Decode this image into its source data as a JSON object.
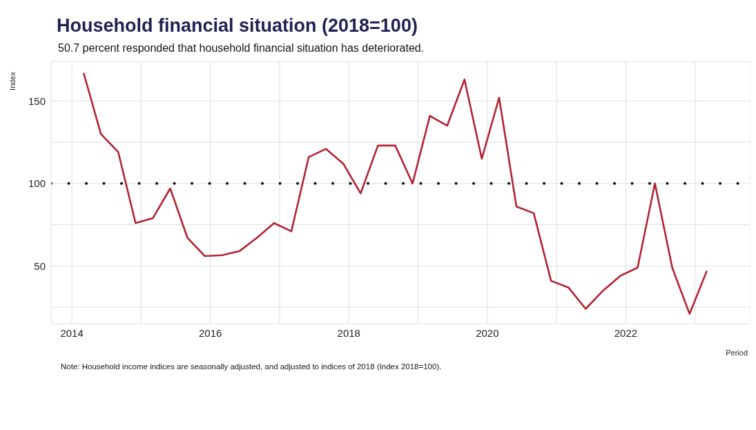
{
  "chart_data": {
    "type": "line",
    "title": "Household financial situation (2018=100)",
    "subtitle": "50.7 percent responded that household financial situation has deteriorated.",
    "xlabel": "Period",
    "ylabel": "Index",
    "x": [
      2014.17,
      2014.42,
      2014.67,
      2014.92,
      2015.17,
      2015.42,
      2015.67,
      2015.92,
      2016.17,
      2016.42,
      2016.67,
      2016.92,
      2017.17,
      2017.42,
      2017.67,
      2017.92,
      2018.17,
      2018.42,
      2018.67,
      2018.92,
      2019.17,
      2019.42,
      2019.67,
      2019.92,
      2020.17,
      2020.42,
      2020.67,
      2020.92,
      2021.17,
      2021.42,
      2021.67,
      2021.92,
      2022.17,
      2022.42,
      2022.67,
      2022.92,
      2023.17
    ],
    "series": [
      {
        "color": "#b22230",
        "values": [
          167,
          130,
          119,
          76,
          79,
          97,
          67,
          56,
          56.5,
          59,
          67,
          76,
          71,
          116,
          121,
          112,
          94,
          123,
          123,
          100,
          141,
          135,
          163,
          115,
          152,
          86,
          82,
          41,
          37,
          24,
          35,
          44,
          49,
          100,
          49,
          21,
          47
        ]
      }
    ],
    "xlim": [
      2013.7,
      2023.8
    ],
    "xticks": [
      2014,
      {
        "value": 2015,
        "label": null
      },
      2016,
      {
        "value": 2017,
        "label": null
      },
      2018,
      {
        "value": 2019,
        "label": null
      },
      2020,
      {
        "value": 2021,
        "label": null
      },
      2022,
      {
        "value": 2023,
        "label": null
      }
    ],
    "ylim": [
      15,
      174
    ],
    "yticks": [
      {
        "value": 25,
        "label": null
      },
      50,
      {
        "value": 75,
        "label": null
      },
      100,
      {
        "value": 125,
        "label": null
      },
      150
    ],
    "ref_lines": [
      {
        "axis": "y",
        "value": 100,
        "color": "#111111",
        "line_style": "dotted"
      }
    ],
    "grid": true,
    "marker": "none",
    "line_style": "solid",
    "annotations": [
      "Note: Household income indices are seasonally adjusted, and adjusted to indices of 2018 (Index 2018=100)."
    ]
  }
}
